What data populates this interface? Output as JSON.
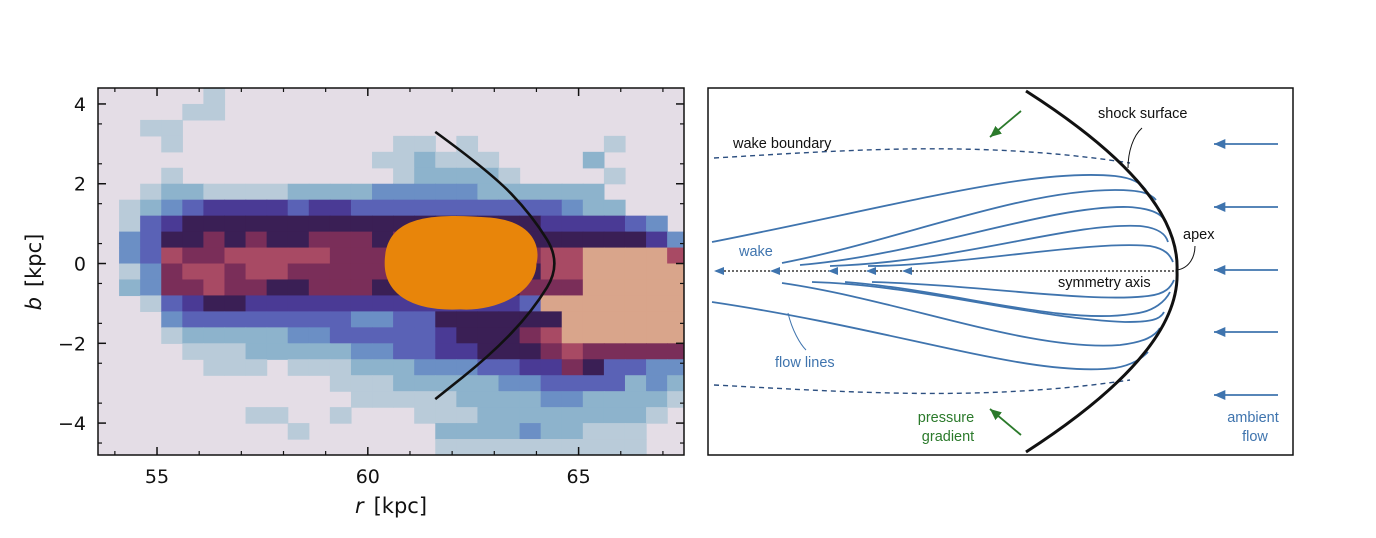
{
  "chart_data": [
    {
      "type": "heatmap",
      "xlabel_var": "r",
      "xlabel_unit": "[kpc]",
      "ylabel_var": "b",
      "ylabel_unit": "[kpc]",
      "xlim": [
        53.6,
        67.5
      ],
      "ylim": [
        -4.8,
        4.4
      ],
      "xticks": [
        55,
        60,
        65
      ],
      "yticks": [
        4,
        2,
        0,
        -2,
        -4
      ],
      "ytick_labels": [
        "4",
        "2",
        "0",
        "−2",
        "−4"
      ],
      "grid": false,
      "colorscale": [
        "#e4dde6",
        "#b9cbd9",
        "#8db3cc",
        "#6b8fc5",
        "#5a62b6",
        "#4a3a95",
        "#3a1f55",
        "#7a2e59",
        "#a84a64",
        "#d9a58b",
        "#e8850a"
      ],
      "bow_shock_curve": {
        "x": [
          61.6,
          62.9,
          63.9,
          64.6,
          63.9,
          62.9,
          61.6
        ],
        "y": [
          3.3,
          2.3,
          1.2,
          0.0,
          -1.2,
          -2.3,
          -3.4
        ]
      },
      "cell_grid": {
        "x_start": 53.6,
        "x_step": 0.5,
        "y_start": 4.4,
        "y_step": -0.4,
        "rows": [
          "000001000000000000000000000000000000000100000",
          "000011000000000000000000000000000000001100000",
          "001100000000000000000000000000000000000000000",
          "000100000000001101000000100000000000000000000",
          "000000000000011211100002000000000000000000011",
          "000100000000001222210000100000001000000000000",
          "001221111222233333222222000000120001000000000",
          "012345555455444444444432200000220010000000000",
          "014566666666666666666555543000421011000000000",
          "034667676677767777766666665300433000000000000",
          "034877888887778777777889999852443000000000000",
          "013788788777777767676889999953320000000000000",
          "023778776677766666667779999953320000000000000",
          "001456655555555555554999999954300000000000000",
          "000344444444334466666699999975200000000000000",
          "000122222334444456667899999963200000000000000",
          "000011122222334455666787777742000000000000000",
          "000001110111222333445576443320000000000000000",
          "000000000001112222233444423210000000000000000",
          "000000000000111112222332222100000000000000000",
          "000000011001000111222222221000000000000000000",
          "000000000100000022223221110000000000000000000",
          "000000000000000011111111110000000000000001100",
          "000000000000000000000000000000000000000000000"
        ]
      }
    },
    {
      "type": "diagram",
      "labels": {
        "shock_surface": "shock surface",
        "wake_boundary": "wake boundary",
        "apex": "apex",
        "wake": "wake",
        "symmetry_axis": "symmetry axis",
        "flow_lines": "flow lines",
        "pressure_gradient": [
          "pressure",
          "gradient"
        ],
        "ambient_flow": [
          "ambient",
          "flow"
        ]
      },
      "colors": {
        "flow": "#3f74ae",
        "pressure": "#2b7a2b",
        "line": "#111111"
      }
    }
  ]
}
